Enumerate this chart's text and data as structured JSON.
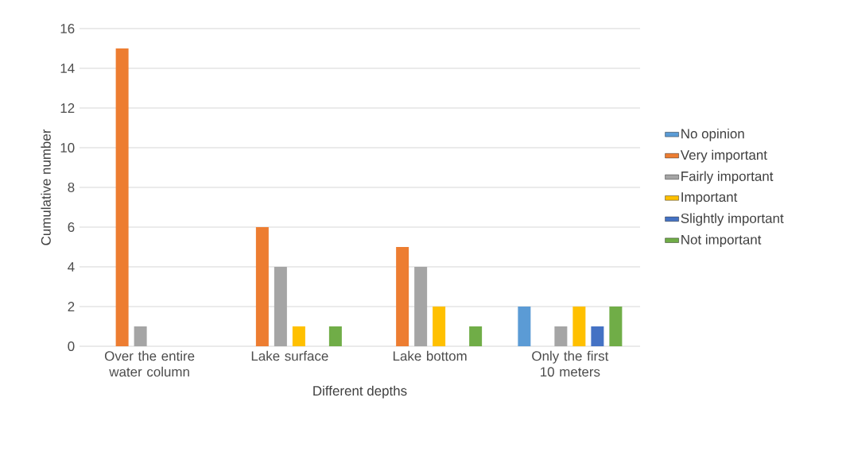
{
  "chart_data": {
    "type": "bar",
    "xlabel": "Different depths",
    "ylabel": "Cumulative number",
    "categories": [
      "Over the entire water column",
      "Lake surface",
      "Lake bottom",
      "Only the first 10 meters"
    ],
    "series": [
      {
        "name": "No opinion",
        "color": "#5b9bd5",
        "values": [
          0,
          0,
          0,
          2
        ]
      },
      {
        "name": "Very important",
        "color": "#ed7d31",
        "values": [
          15,
          6,
          5,
          0
        ]
      },
      {
        "name": "Fairly important",
        "color": "#a5a5a5",
        "values": [
          1,
          4,
          4,
          1
        ]
      },
      {
        "name": "Important",
        "color": "#ffc000",
        "values": [
          0,
          1,
          2,
          2
        ]
      },
      {
        "name": "Slightly important",
        "color": "#4472c4",
        "values": [
          0,
          0,
          0,
          1
        ]
      },
      {
        "name": "Not important",
        "color": "#70ad47",
        "values": [
          0,
          1,
          1,
          2
        ]
      }
    ],
    "ylim": [
      0,
      16
    ],
    "yticks": [
      0,
      2,
      4,
      6,
      8,
      10,
      12,
      14,
      16
    ],
    "grid": "y",
    "legend": "right"
  }
}
